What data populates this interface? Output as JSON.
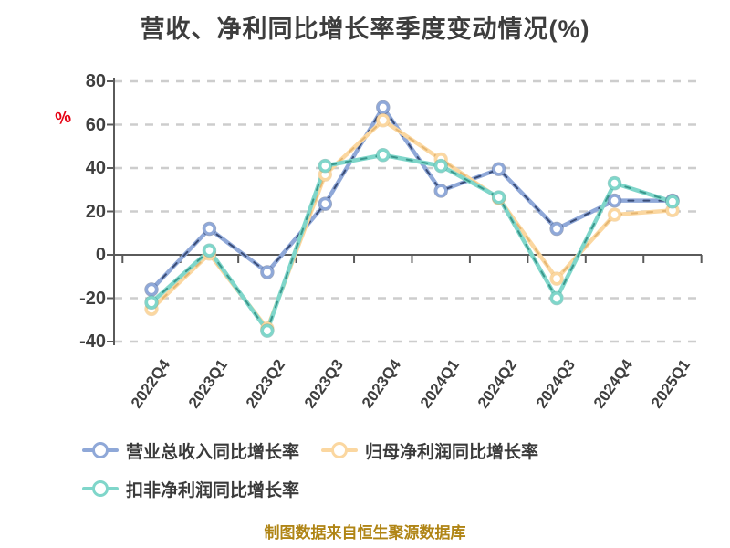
{
  "title": "营收、净利同比增长率季度变动情况(%)",
  "footer": "制图数据来自恒生聚源数据库",
  "y_axis": {
    "unit_label": "%",
    "unit_color": "#e60012",
    "ticks": [
      80,
      60,
      40,
      20,
      0,
      -20,
      -40
    ]
  },
  "chart_data": {
    "type": "line",
    "title": "营收、净利同比增长率季度变动情况(%)",
    "categories": [
      "2022Q4",
      "2023Q1",
      "2023Q2",
      "2023Q3",
      "2023Q4",
      "2024Q1",
      "2024Q2",
      "2024Q3",
      "2024Q4",
      "2025Q1"
    ],
    "series": [
      {
        "key": "revenue-yoy-growth",
        "name": "营业总收入同比增长率",
        "color": "#8fa8d8",
        "dash_color": "#2a3c66",
        "values": [
          -16,
          12,
          -8,
          23.5,
          68,
          29.5,
          39.5,
          12,
          25,
          25
        ]
      },
      {
        "key": "net-profit-yoy-growth",
        "name": "归母净利润同比增长率",
        "color": "#fbd7a0",
        "dash_color": "#e0b06a",
        "values": [
          -25,
          0.5,
          -34,
          37,
          62,
          44,
          26,
          -11,
          18.5,
          20.5
        ]
      },
      {
        "key": "non-gaap-net-profit-yoy-growth",
        "name": "扣非净利润同比增长率",
        "color": "#7fd6ca",
        "dash_color": "#2f8d82",
        "values": [
          -22,
          2,
          -35,
          41,
          46,
          41,
          26.5,
          -20,
          33,
          24.5
        ]
      }
    ],
    "ylabel": "%",
    "ylim": [
      -40,
      80
    ],
    "y_tick_step": 20,
    "grid": true,
    "grid_color": "#cdcdcd",
    "axis_color": "#5a5a5a",
    "legend_position": "bottom-left"
  }
}
